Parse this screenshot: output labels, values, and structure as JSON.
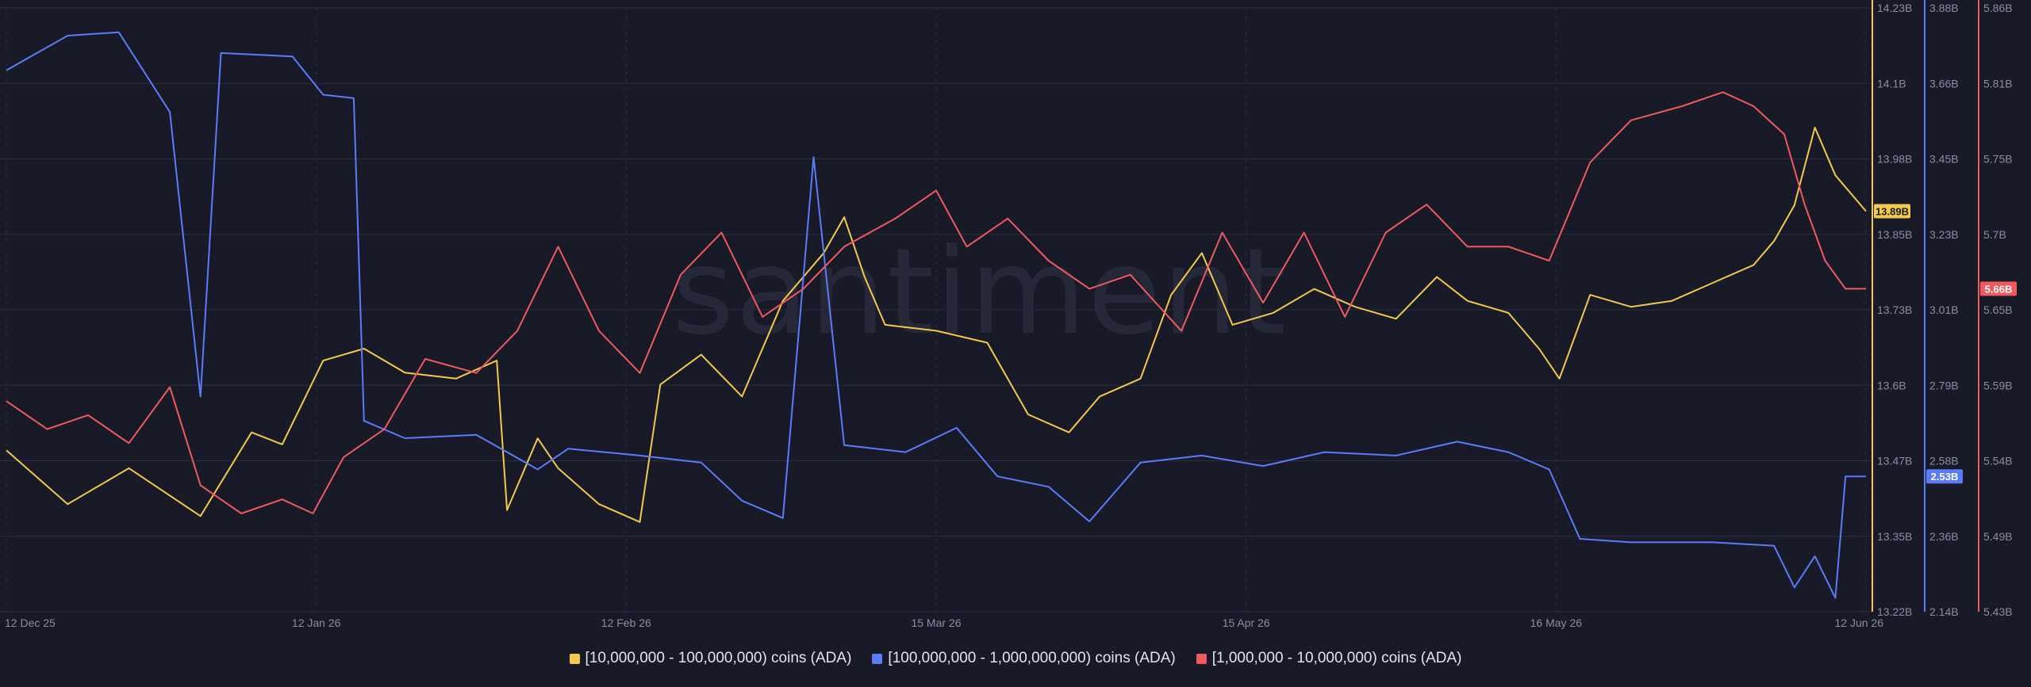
{
  "watermark": "santiment",
  "colors": {
    "background": "#181a27",
    "grid": "#2a2d3d",
    "series_yellow": "#f2c94c",
    "series_blue": "#5b7cfa",
    "series_red": "#ef5a5f"
  },
  "chart_data": {
    "type": "line",
    "grid": true,
    "legend_position": "bottom-center",
    "x_ticks": [
      "12 Dec 25",
      "12 Jan 26",
      "12 Feb 26",
      "15 Mar 26",
      "15 Apr 26",
      "16 May 26",
      "12 Jun 26"
    ],
    "x_range": [
      "2025-12-12",
      "2026-06-12"
    ],
    "axes": [
      {
        "id": "yellow",
        "ticks": [
          "14.23B",
          "14.1B",
          "13.98B",
          "13.85B",
          "13.73B",
          "13.6B",
          "13.47B",
          "13.35B",
          "13.22B"
        ],
        "ylim": [
          13.22,
          14.23
        ],
        "last_value": "13.89B"
      },
      {
        "id": "blue",
        "ticks": [
          "3.88B",
          "3.66B",
          "3.45B",
          "3.23B",
          "3.01B",
          "2.79B",
          "2.58B",
          "2.36B",
          "2.14B"
        ],
        "ylim": [
          2.14,
          3.88
        ],
        "last_value": "2.53B"
      },
      {
        "id": "red",
        "ticks": [
          "5.86B",
          "5.81B",
          "5.75B",
          "5.7B",
          "5.65B",
          "5.59B",
          "5.54B",
          "5.49B",
          "5.43B"
        ],
        "ylim": [
          5.43,
          5.86
        ],
        "last_value": "5.66B"
      }
    ],
    "series": [
      {
        "name": "[10,000,000 - 100,000,000) coins (ADA)",
        "axis": "yellow",
        "color": "#f2c94c",
        "points": [
          [
            "2025-12-12",
            13.49
          ],
          [
            "2025-12-18",
            13.4
          ],
          [
            "2025-12-24",
            13.46
          ],
          [
            "2025-12-31",
            13.38
          ],
          [
            "2026-01-05",
            13.52
          ],
          [
            "2026-01-08",
            13.5
          ],
          [
            "2026-01-12",
            13.64
          ],
          [
            "2026-01-16",
            13.66
          ],
          [
            "2026-01-20",
            13.62
          ],
          [
            "2026-01-25",
            13.61
          ],
          [
            "2026-01-29",
            13.64
          ],
          [
            "2026-01-30",
            13.39
          ],
          [
            "2026-02-02",
            13.51
          ],
          [
            "2026-02-04",
            13.46
          ],
          [
            "2026-02-08",
            13.4
          ],
          [
            "2026-02-12",
            13.37
          ],
          [
            "2026-02-14",
            13.6
          ],
          [
            "2026-02-18",
            13.65
          ],
          [
            "2026-02-22",
            13.58
          ],
          [
            "2026-02-26",
            13.74
          ],
          [
            "2026-03-02",
            13.82
          ],
          [
            "2026-03-04",
            13.88
          ],
          [
            "2026-03-06",
            13.78
          ],
          [
            "2026-03-08",
            13.7
          ],
          [
            "2026-03-13",
            13.69
          ],
          [
            "2026-03-18",
            13.67
          ],
          [
            "2026-03-22",
            13.55
          ],
          [
            "2026-03-26",
            13.52
          ],
          [
            "2026-03-29",
            13.58
          ],
          [
            "2026-04-02",
            13.61
          ],
          [
            "2026-04-05",
            13.75
          ],
          [
            "2026-04-08",
            13.82
          ],
          [
            "2026-04-11",
            13.7
          ],
          [
            "2026-04-15",
            13.72
          ],
          [
            "2026-04-19",
            13.76
          ],
          [
            "2026-04-23",
            13.73
          ],
          [
            "2026-04-27",
            13.71
          ],
          [
            "2026-05-01",
            13.78
          ],
          [
            "2026-05-04",
            13.74
          ],
          [
            "2026-05-08",
            13.72
          ],
          [
            "2026-05-11",
            13.66
          ],
          [
            "2026-05-13",
            13.61
          ],
          [
            "2026-05-16",
            13.75
          ],
          [
            "2026-05-20",
            13.73
          ],
          [
            "2026-05-24",
            13.74
          ],
          [
            "2026-05-28",
            13.77
          ],
          [
            "2026-06-01",
            13.8
          ],
          [
            "2026-06-03",
            13.84
          ],
          [
            "2026-06-05",
            13.9
          ],
          [
            "2026-06-07",
            14.03
          ],
          [
            "2026-06-09",
            13.95
          ],
          [
            "2026-06-12",
            13.89
          ]
        ]
      },
      {
        "name": "[100,000,000 - 1,000,000,000) coins (ADA)",
        "axis": "blue",
        "color": "#5b7cfa",
        "points": [
          [
            "2025-12-12",
            3.7
          ],
          [
            "2025-12-18",
            3.8
          ],
          [
            "2025-12-23",
            3.81
          ],
          [
            "2025-12-28",
            3.58
          ],
          [
            "2025-12-31",
            2.76
          ],
          [
            "2026-01-02",
            3.75
          ],
          [
            "2026-01-09",
            3.74
          ],
          [
            "2026-01-12",
            3.63
          ],
          [
            "2026-01-15",
            3.62
          ],
          [
            "2026-01-16",
            2.69
          ],
          [
            "2026-01-20",
            2.64
          ],
          [
            "2026-01-27",
            2.65
          ],
          [
            "2026-02-02",
            2.55
          ],
          [
            "2026-02-05",
            2.61
          ],
          [
            "2026-02-12",
            2.59
          ],
          [
            "2026-02-18",
            2.57
          ],
          [
            "2026-02-22",
            2.46
          ],
          [
            "2026-02-26",
            2.41
          ],
          [
            "2026-03-01",
            3.45
          ],
          [
            "2026-03-04",
            2.62
          ],
          [
            "2026-03-10",
            2.6
          ],
          [
            "2026-03-15",
            2.67
          ],
          [
            "2026-03-19",
            2.53
          ],
          [
            "2026-03-24",
            2.5
          ],
          [
            "2026-03-28",
            2.4
          ],
          [
            "2026-04-02",
            2.57
          ],
          [
            "2026-04-08",
            2.59
          ],
          [
            "2026-04-14",
            2.56
          ],
          [
            "2026-04-20",
            2.6
          ],
          [
            "2026-04-27",
            2.59
          ],
          [
            "2026-05-03",
            2.63
          ],
          [
            "2026-05-08",
            2.6
          ],
          [
            "2026-05-12",
            2.55
          ],
          [
            "2026-05-15",
            2.35
          ],
          [
            "2026-05-20",
            2.34
          ],
          [
            "2026-05-28",
            2.34
          ],
          [
            "2026-06-03",
            2.33
          ],
          [
            "2026-06-05",
            2.21
          ],
          [
            "2026-06-07",
            2.3
          ],
          [
            "2026-06-09",
            2.18
          ],
          [
            "2026-06-10",
            2.53
          ],
          [
            "2026-06-12",
            2.53
          ]
        ]
      },
      {
        "name": "[1,000,000 - 10,000,000) coins (ADA)",
        "axis": "red",
        "color": "#ef5a5f",
        "points": [
          [
            "2025-12-12",
            5.58
          ],
          [
            "2025-12-16",
            5.56
          ],
          [
            "2025-12-20",
            5.57
          ],
          [
            "2025-12-24",
            5.55
          ],
          [
            "2025-12-28",
            5.59
          ],
          [
            "2025-12-31",
            5.52
          ],
          [
            "2026-01-04",
            5.5
          ],
          [
            "2026-01-08",
            5.51
          ],
          [
            "2026-01-11",
            5.5
          ],
          [
            "2026-01-14",
            5.54
          ],
          [
            "2026-01-18",
            5.56
          ],
          [
            "2026-01-22",
            5.61
          ],
          [
            "2026-01-27",
            5.6
          ],
          [
            "2026-01-31",
            5.63
          ],
          [
            "2026-02-04",
            5.69
          ],
          [
            "2026-02-08",
            5.63
          ],
          [
            "2026-02-12",
            5.6
          ],
          [
            "2026-02-16",
            5.67
          ],
          [
            "2026-02-20",
            5.7
          ],
          [
            "2026-02-24",
            5.64
          ],
          [
            "2026-02-28",
            5.66
          ],
          [
            "2026-03-04",
            5.69
          ],
          [
            "2026-03-09",
            5.71
          ],
          [
            "2026-03-13",
            5.73
          ],
          [
            "2026-03-16",
            5.69
          ],
          [
            "2026-03-20",
            5.71
          ],
          [
            "2026-03-24",
            5.68
          ],
          [
            "2026-03-28",
            5.66
          ],
          [
            "2026-04-01",
            5.67
          ],
          [
            "2026-04-06",
            5.63
          ],
          [
            "2026-04-10",
            5.7
          ],
          [
            "2026-04-14",
            5.65
          ],
          [
            "2026-04-18",
            5.7
          ],
          [
            "2026-04-22",
            5.64
          ],
          [
            "2026-04-26",
            5.7
          ],
          [
            "2026-04-30",
            5.72
          ],
          [
            "2026-05-04",
            5.69
          ],
          [
            "2026-05-08",
            5.69
          ],
          [
            "2026-05-12",
            5.68
          ],
          [
            "2026-05-16",
            5.75
          ],
          [
            "2026-05-20",
            5.78
          ],
          [
            "2026-05-25",
            5.79
          ],
          [
            "2026-05-29",
            5.8
          ],
          [
            "2026-06-01",
            5.79
          ],
          [
            "2026-06-04",
            5.77
          ],
          [
            "2026-06-06",
            5.72
          ],
          [
            "2026-06-08",
            5.68
          ],
          [
            "2026-06-10",
            5.66
          ],
          [
            "2026-06-12",
            5.66
          ]
        ]
      }
    ]
  }
}
